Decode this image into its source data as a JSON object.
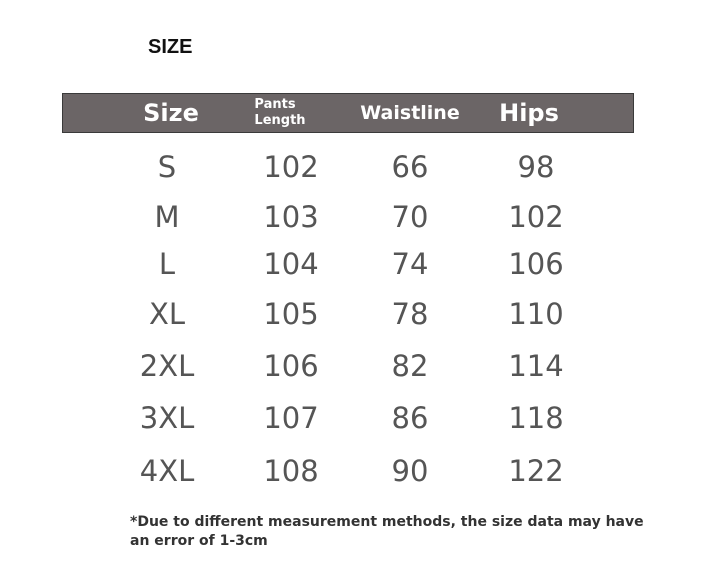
{
  "title": "SIZE",
  "table": {
    "headers": [
      "Size",
      "Pants Length",
      "Waistline",
      "Hips"
    ],
    "header_lines": {
      "pants_1": "Pants",
      "pants_2": "Length"
    },
    "rows": [
      [
        "S",
        "102",
        "66",
        "98"
      ],
      [
        "M",
        "103",
        "70",
        "102"
      ],
      [
        "L",
        "104",
        "74",
        "106"
      ],
      [
        "XL",
        "105",
        "78",
        "110"
      ],
      [
        "2XL",
        "106",
        "82",
        "114"
      ],
      [
        "3XL",
        "107",
        "86",
        "118"
      ],
      [
        "4XL",
        "108",
        "90",
        "122"
      ]
    ]
  },
  "note": "*Due to different measurement methods, the size data may have an error of 1-3cm",
  "colors": {
    "header_bg": "#6b6566",
    "header_text": "#ffffff",
    "cell_text": "#555555"
  }
}
